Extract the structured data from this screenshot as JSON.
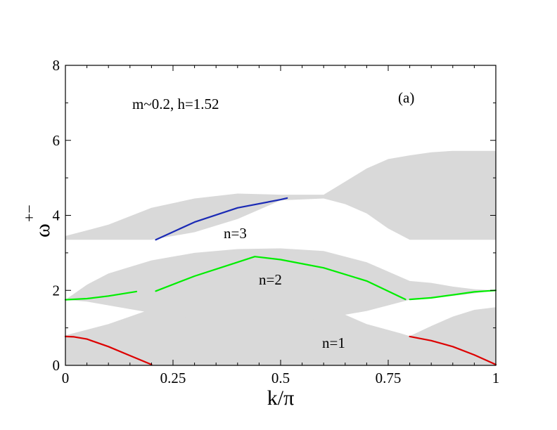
{
  "chart_data": {
    "type": "line",
    "title": "",
    "xlabel": "k/π",
    "ylabel_base": "ω",
    "ylabel_superscript": "+−",
    "xlim": [
      0,
      1
    ],
    "ylim": [
      0,
      8
    ],
    "grid": false,
    "xticks": [
      0,
      0.25,
      0.5,
      0.75,
      1
    ],
    "xtick_labels": [
      "0",
      "0.25",
      "0.5",
      "0.75",
      "1"
    ],
    "yticks": [
      0,
      2,
      4,
      6,
      8
    ],
    "ytick_labels": [
      "0",
      "2",
      "4",
      "6",
      "8"
    ],
    "annotations": {
      "params": "m~0.2, h=1.52",
      "panel": "(a)",
      "n1": "n=1",
      "n2": "n=2",
      "n3": "n=3"
    },
    "continuum_bands": [
      {
        "name": "n=1 continuum",
        "color": "#d9d9d9",
        "x": [
          0,
          0.1,
          0.2,
          0.3,
          0.4,
          0.5,
          0.6,
          0.7,
          0.78,
          0.8,
          0.85,
          0.9,
          0.95,
          1
        ],
        "upper": [
          0.8,
          1.1,
          1.5,
          1.8,
          1.95,
          1.9,
          1.6,
          1.1,
          0.85,
          0.78,
          1.05,
          1.3,
          1.48,
          1.55
        ],
        "lower": [
          0.0,
          0.0,
          0.0,
          0.0,
          0.0,
          0.0,
          0.0,
          0.0,
          0.0,
          0.0,
          0.0,
          0.0,
          0.0,
          0.0
        ]
      },
      {
        "name": "n=2 continuum",
        "color": "#d9d9d9",
        "x": [
          0,
          0.05,
          0.1,
          0.2,
          0.3,
          0.4,
          0.5,
          0.6,
          0.7,
          0.8,
          0.85,
          0.9,
          0.95,
          1
        ],
        "upper": [
          1.75,
          2.15,
          2.45,
          2.8,
          3.0,
          3.1,
          3.12,
          3.05,
          2.75,
          2.25,
          2.2,
          2.1,
          2.03,
          2.0
        ],
        "lower": [
          1.75,
          1.7,
          1.6,
          1.4,
          1.25,
          1.15,
          1.15,
          1.25,
          1.45,
          1.75,
          1.8,
          1.85,
          1.92,
          2.0
        ]
      },
      {
        "name": "n=3 continuum",
        "color": "#d9d9d9",
        "x": [
          0,
          0.1,
          0.2,
          0.3,
          0.4,
          0.5,
          0.6,
          0.65,
          0.7,
          0.75,
          0.8,
          0.85,
          0.9,
          0.95,
          1
        ],
        "upper": [
          3.45,
          3.75,
          4.2,
          4.45,
          4.58,
          4.55,
          4.55,
          4.9,
          5.25,
          5.5,
          5.6,
          5.68,
          5.72,
          5.72,
          5.72
        ],
        "lower": [
          3.35,
          3.35,
          3.35,
          3.55,
          3.9,
          4.4,
          4.45,
          4.3,
          4.05,
          3.65,
          3.35,
          3.35,
          3.35,
          3.35,
          3.35
        ]
      }
    ],
    "series": [
      {
        "name": "n=1 bound state (left)",
        "color": "#dd0000",
        "x": [
          0,
          0.02,
          0.05,
          0.1,
          0.15,
          0.2
        ],
        "y": [
          0.77,
          0.76,
          0.7,
          0.5,
          0.26,
          0.02
        ]
      },
      {
        "name": "n=1 bound state (right)",
        "color": "#dd0000",
        "x": [
          0.8,
          0.85,
          0.9,
          0.95,
          1.0
        ],
        "y": [
          0.77,
          0.66,
          0.5,
          0.28,
          0.02
        ]
      },
      {
        "name": "n=2 bound state (left segment)",
        "color": "#00ee00",
        "x": [
          0,
          0.05,
          0.1,
          0.165
        ],
        "y": [
          1.75,
          1.78,
          1.85,
          1.97
        ]
      },
      {
        "name": "n=2 bound state (middle segment)",
        "color": "#00ee00",
        "x": [
          0.21,
          0.3,
          0.4,
          0.44,
          0.5,
          0.6,
          0.7,
          0.79
        ],
        "y": [
          1.98,
          2.38,
          2.75,
          2.9,
          2.82,
          2.6,
          2.25,
          1.76
        ]
      },
      {
        "name": "n=2 bound state (right segment)",
        "color": "#00ee00",
        "x": [
          0.8,
          0.85,
          0.9,
          0.95,
          1.0
        ],
        "y": [
          1.76,
          1.8,
          1.88,
          1.96,
          2.0
        ]
      },
      {
        "name": "n=3 bound state",
        "color": "#1a2ab5",
        "x": [
          0.21,
          0.3,
          0.4,
          0.5,
          0.515
        ],
        "y": [
          3.35,
          3.82,
          4.2,
          4.42,
          4.46
        ]
      }
    ]
  }
}
